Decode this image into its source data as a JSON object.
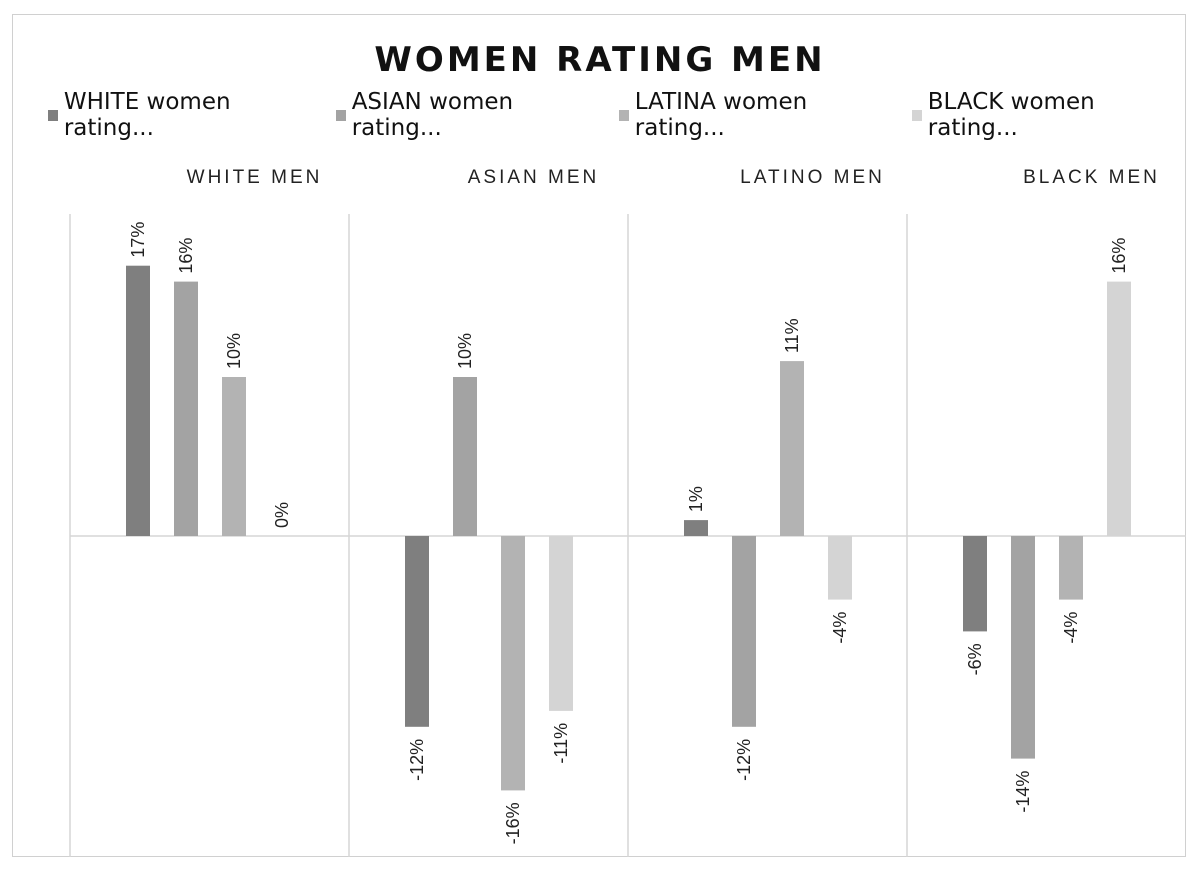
{
  "chart_data": {
    "type": "bar",
    "title": "WOMEN RATING MEN",
    "categories": [
      "WHITE MEN",
      "ASIAN MEN",
      "LATINO MEN",
      "BLACK MEN"
    ],
    "series": [
      {
        "name": "WHITE women rating...",
        "color": "#7f7f7f",
        "values": [
          17,
          -12,
          1,
          -6
        ],
        "labels": [
          "17%",
          "-12%",
          "1%",
          "-6%"
        ]
      },
      {
        "name": "ASIAN women rating...",
        "color": "#a3a3a3",
        "values": [
          16,
          10,
          -12,
          -14
        ],
        "labels": [
          "16%",
          "10%",
          "-12%",
          "-14%"
        ]
      },
      {
        "name": "LATINA women rating...",
        "color": "#b3b3b3",
        "values": [
          10,
          -16,
          11,
          -4
        ],
        "labels": [
          "10%",
          "-16%",
          "11%",
          "-4%"
        ]
      },
      {
        "name": "BLACK women rating...",
        "color": "#d4d4d4",
        "values": [
          0,
          -11,
          -4,
          16
        ],
        "labels": [
          "0%",
          "-11%",
          "-4%",
          "16%"
        ]
      }
    ],
    "ylim": [
      -20,
      20
    ],
    "legend_position": "top",
    "grid": false
  }
}
